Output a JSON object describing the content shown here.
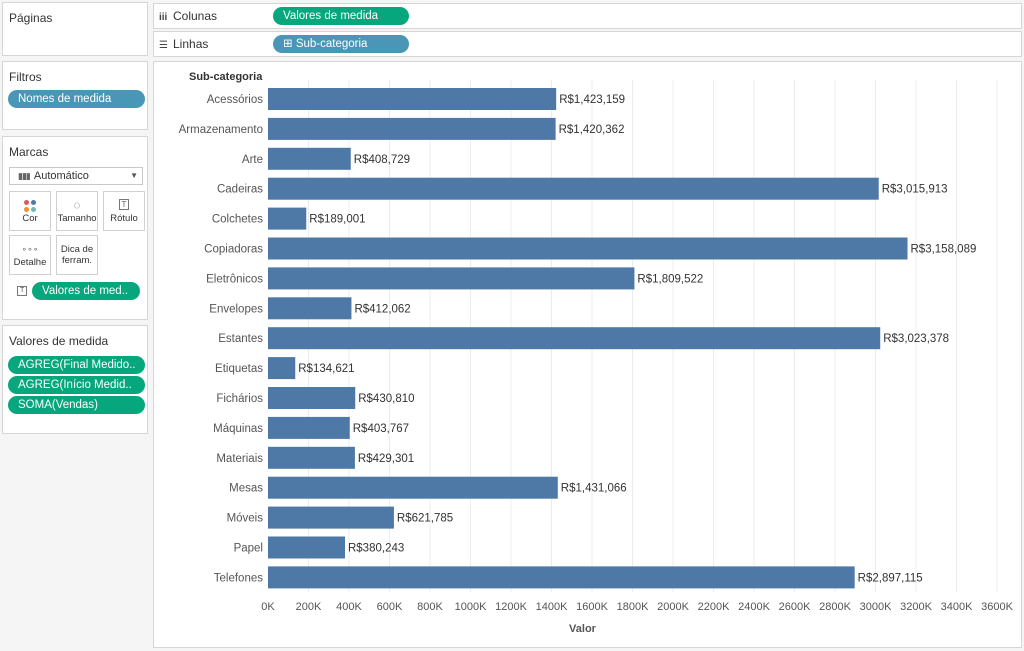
{
  "pages_panel": {
    "title": "Páginas"
  },
  "filters_panel": {
    "title": "Filtros",
    "pills": [
      "Nomes de medida"
    ]
  },
  "marks_panel": {
    "title": "Marcas",
    "mark_type": "Automático",
    "buttons": {
      "color": "Cor",
      "size": "Tamanho",
      "label": "Rótulo",
      "detail": "Detalhe",
      "tooltip_line1": "Dica de",
      "tooltip_line2": "ferram."
    },
    "label_pill": "Valores de med.."
  },
  "measure_values_panel": {
    "title": "Valores de medida",
    "pills": [
      "AGREG(Final Medido..",
      "AGREG(Início Medid..",
      "SOMA(Vendas)"
    ]
  },
  "shelves": {
    "columns_label": "Colunas",
    "columns_pill": "Valores de medida",
    "rows_label": "Linhas",
    "rows_pill": "Sub-categoria",
    "rows_pill_icon": "⊞"
  },
  "chart_data": {
    "type": "bar",
    "orientation": "horizontal",
    "row_header": "Sub-categoria",
    "xlabel": "Valor",
    "xlim": [
      0,
      3600000
    ],
    "x_ticks": [
      "0K",
      "200K",
      "400K",
      "600K",
      "800K",
      "1000K",
      "1200K",
      "1400K",
      "1600K",
      "1800K",
      "2000K",
      "2200K",
      "2400K",
      "2600K",
      "2800K",
      "3000K",
      "3200K",
      "3400K",
      "3600K"
    ],
    "grid": true,
    "bar_color": "#4e79a7",
    "categories": [
      "Acessórios",
      "Armazenamento",
      "Arte",
      "Cadeiras",
      "Colchetes",
      "Copiadoras",
      "Eletrônicos",
      "Envelopes",
      "Estantes",
      "Etiquetas",
      "Fichários",
      "Máquinas",
      "Materiais",
      "Mesas",
      "Móveis",
      "Papel",
      "Telefones"
    ],
    "values": [
      1423159,
      1420362,
      408729,
      3015913,
      189001,
      3158089,
      1809522,
      412062,
      3023378,
      134621,
      430810,
      403767,
      429301,
      1431066,
      621785,
      380243,
      2897115
    ],
    "value_labels": [
      "R$1,423,159",
      "R$1,420,362",
      "R$408,729",
      "R$3,015,913",
      "R$189,001",
      "R$3,158,089",
      "R$1,809,522",
      "R$412,062",
      "R$3,023,378",
      "R$134,621",
      "R$430,810",
      "R$403,767",
      "R$429,301",
      "R$1,431,066",
      "R$621,785",
      "R$380,243",
      "R$2,897,115"
    ]
  }
}
